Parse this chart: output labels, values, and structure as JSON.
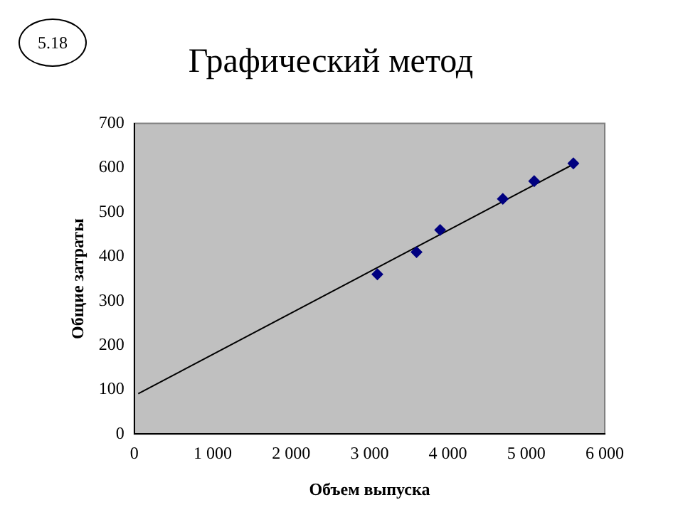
{
  "chart_data": {
    "type": "scatter",
    "title": "Графический метод",
    "xlabel": "Объем выпуска",
    "ylabel": "Общие затраты",
    "annotations": [
      "5.18"
    ],
    "xlim": [
      0,
      6000
    ],
    "ylim": [
      0,
      700
    ],
    "xticks": [
      0,
      {
        "value": 1000,
        "label": "1 000"
      },
      {
        "value": 2000,
        "label": "2 000"
      },
      {
        "value": 3000,
        "label": "3 000"
      },
      {
        "value": 4000,
        "label": "4 000"
      },
      {
        "value": 5000,
        "label": "5 000"
      },
      {
        "value": 6000,
        "label": "6 000"
      }
    ],
    "yticks": [
      0,
      100,
      200,
      300,
      400,
      500,
      600,
      700
    ],
    "grid": false,
    "legend": false,
    "marker": "diamond",
    "series": [
      {
        "type": "scatter",
        "color": "#000080",
        "x": [
          3100,
          3600,
          3900,
          4700,
          5100,
          5600
        ],
        "values": [
          360,
          410,
          460,
          530,
          570,
          610
        ]
      },
      {
        "type": "line",
        "color": "#000000",
        "x": [
          50,
          5600
        ],
        "values": [
          91,
          608
        ],
        "marker": "none"
      }
    ]
  }
}
